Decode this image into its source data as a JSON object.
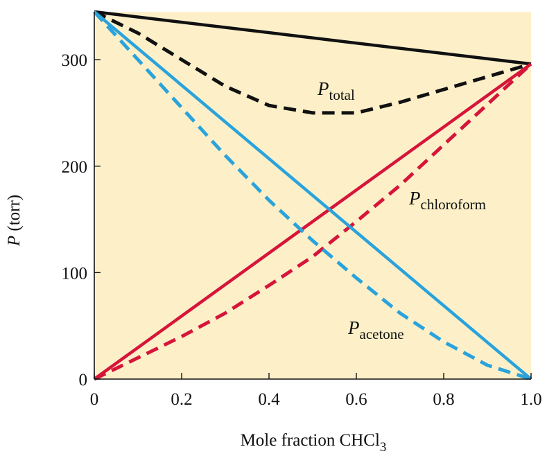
{
  "chart_data": {
    "type": "line",
    "title": "",
    "xlabel": {
      "main": "Mole fraction CHCl",
      "sub": "3"
    },
    "ylabel": {
      "italic": "P",
      "rest": " (torr)"
    },
    "xlim": [
      0,
      1.0
    ],
    "ylim": [
      0,
      345
    ],
    "x_ticks": [
      {
        "value": 0,
        "label": "0"
      },
      {
        "value": 0.2,
        "label": "0.2"
      },
      {
        "value": 0.4,
        "label": "0.4"
      },
      {
        "value": 0.6,
        "label": "0.6"
      },
      {
        "value": 0.8,
        "label": "0.8"
      },
      {
        "value": 1.0,
        "label": "1.0"
      }
    ],
    "y_ticks": [
      {
        "value": 0,
        "label": "0"
      },
      {
        "value": 100,
        "label": "100"
      },
      {
        "value": 200,
        "label": "200"
      },
      {
        "value": 300,
        "label": "300"
      }
    ],
    "grid": false,
    "background_color": "#fdf0c8",
    "series": [
      {
        "id": "total-ideal",
        "color": "#111111",
        "style": "solid",
        "x": [
          0,
          1.0
        ],
        "y": [
          345,
          296
        ]
      },
      {
        "id": "total-real",
        "color": "#111111",
        "style": "dashed",
        "label": {
          "main": "P",
          "sub": "total"
        },
        "x": [
          0,
          0.1,
          0.2,
          0.3,
          0.4,
          0.5,
          0.6,
          0.7,
          0.8,
          0.9,
          1.0
        ],
        "y": [
          345,
          325,
          300,
          275,
          257,
          250,
          250,
          260,
          272,
          284,
          296
        ]
      },
      {
        "id": "chloroform-ideal",
        "color": "#d6153a",
        "style": "solid",
        "x": [
          0,
          1.0
        ],
        "y": [
          0,
          296
        ]
      },
      {
        "id": "chloroform-real",
        "color": "#d6153a",
        "style": "dashed",
        "label": {
          "main": "P",
          "sub": "chloroform"
        },
        "x": [
          0,
          0.1,
          0.2,
          0.3,
          0.4,
          0.5,
          0.6,
          0.7,
          0.8,
          0.9,
          1.0
        ],
        "y": [
          0,
          20,
          40,
          62,
          88,
          115,
          148,
          182,
          220,
          258,
          296
        ]
      },
      {
        "id": "acetone-ideal",
        "color": "#2aa3dc",
        "style": "solid",
        "x": [
          0,
          1.0
        ],
        "y": [
          345,
          0
        ]
      },
      {
        "id": "acetone-real",
        "color": "#2aa3dc",
        "style": "dashed",
        "label": {
          "main": "P",
          "sub": "acetone"
        },
        "x": [
          0,
          0.1,
          0.2,
          0.3,
          0.4,
          0.5,
          0.6,
          0.7,
          0.8,
          0.9,
          1.0
        ],
        "y": [
          345,
          300,
          255,
          210,
          168,
          130,
          95,
          62,
          35,
          13,
          0
        ]
      }
    ]
  }
}
